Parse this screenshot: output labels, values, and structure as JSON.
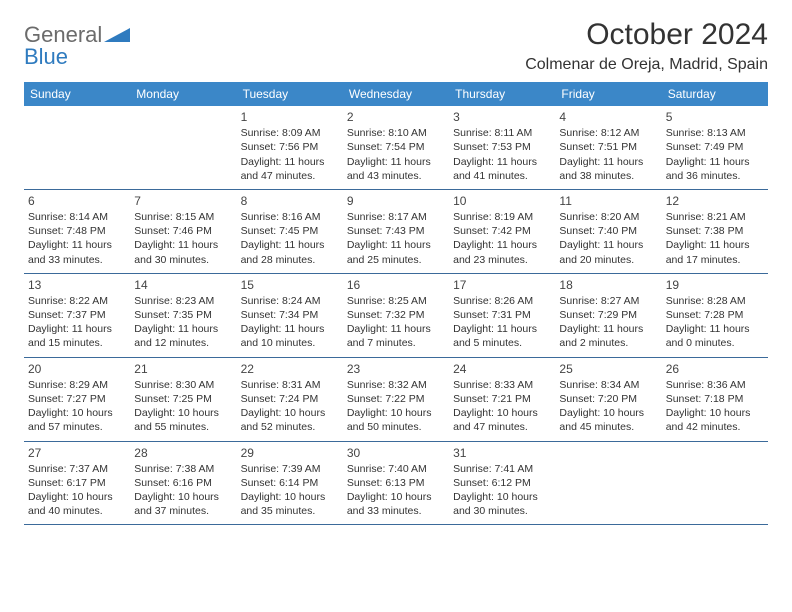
{
  "logo": {
    "gray_text": "General",
    "blue_text": "Blue"
  },
  "title": "October 2024",
  "location": "Colmenar de Oreja, Madrid, Spain",
  "weekdays": [
    "Sunday",
    "Monday",
    "Tuesday",
    "Wednesday",
    "Thursday",
    "Friday",
    "Saturday"
  ],
  "colors": {
    "header_bg": "#3b87c8",
    "header_text": "#ffffff",
    "row_border": "#3b6a9a",
    "body_text": "#333333",
    "logo_blue": "#2f7bbf",
    "logo_gray": "#6b6b6b",
    "background": "#ffffff"
  },
  "typography": {
    "title_fontsize": 30,
    "location_fontsize": 16,
    "weekday_fontsize": 12,
    "daynum_fontsize": 12,
    "body_fontsize": 10.5,
    "logo_fontsize": 22
  },
  "weeks": [
    [
      {
        "num": "",
        "sunrise": "",
        "sunset": "",
        "daylight1": "",
        "daylight2": ""
      },
      {
        "num": "",
        "sunrise": "",
        "sunset": "",
        "daylight1": "",
        "daylight2": ""
      },
      {
        "num": "1",
        "sunrise": "Sunrise: 8:09 AM",
        "sunset": "Sunset: 7:56 PM",
        "daylight1": "Daylight: 11 hours",
        "daylight2": "and 47 minutes."
      },
      {
        "num": "2",
        "sunrise": "Sunrise: 8:10 AM",
        "sunset": "Sunset: 7:54 PM",
        "daylight1": "Daylight: 11 hours",
        "daylight2": "and 43 minutes."
      },
      {
        "num": "3",
        "sunrise": "Sunrise: 8:11 AM",
        "sunset": "Sunset: 7:53 PM",
        "daylight1": "Daylight: 11 hours",
        "daylight2": "and 41 minutes."
      },
      {
        "num": "4",
        "sunrise": "Sunrise: 8:12 AM",
        "sunset": "Sunset: 7:51 PM",
        "daylight1": "Daylight: 11 hours",
        "daylight2": "and 38 minutes."
      },
      {
        "num": "5",
        "sunrise": "Sunrise: 8:13 AM",
        "sunset": "Sunset: 7:49 PM",
        "daylight1": "Daylight: 11 hours",
        "daylight2": "and 36 minutes."
      }
    ],
    [
      {
        "num": "6",
        "sunrise": "Sunrise: 8:14 AM",
        "sunset": "Sunset: 7:48 PM",
        "daylight1": "Daylight: 11 hours",
        "daylight2": "and 33 minutes."
      },
      {
        "num": "7",
        "sunrise": "Sunrise: 8:15 AM",
        "sunset": "Sunset: 7:46 PM",
        "daylight1": "Daylight: 11 hours",
        "daylight2": "and 30 minutes."
      },
      {
        "num": "8",
        "sunrise": "Sunrise: 8:16 AM",
        "sunset": "Sunset: 7:45 PM",
        "daylight1": "Daylight: 11 hours",
        "daylight2": "and 28 minutes."
      },
      {
        "num": "9",
        "sunrise": "Sunrise: 8:17 AM",
        "sunset": "Sunset: 7:43 PM",
        "daylight1": "Daylight: 11 hours",
        "daylight2": "and 25 minutes."
      },
      {
        "num": "10",
        "sunrise": "Sunrise: 8:19 AM",
        "sunset": "Sunset: 7:42 PM",
        "daylight1": "Daylight: 11 hours",
        "daylight2": "and 23 minutes."
      },
      {
        "num": "11",
        "sunrise": "Sunrise: 8:20 AM",
        "sunset": "Sunset: 7:40 PM",
        "daylight1": "Daylight: 11 hours",
        "daylight2": "and 20 minutes."
      },
      {
        "num": "12",
        "sunrise": "Sunrise: 8:21 AM",
        "sunset": "Sunset: 7:38 PM",
        "daylight1": "Daylight: 11 hours",
        "daylight2": "and 17 minutes."
      }
    ],
    [
      {
        "num": "13",
        "sunrise": "Sunrise: 8:22 AM",
        "sunset": "Sunset: 7:37 PM",
        "daylight1": "Daylight: 11 hours",
        "daylight2": "and 15 minutes."
      },
      {
        "num": "14",
        "sunrise": "Sunrise: 8:23 AM",
        "sunset": "Sunset: 7:35 PM",
        "daylight1": "Daylight: 11 hours",
        "daylight2": "and 12 minutes."
      },
      {
        "num": "15",
        "sunrise": "Sunrise: 8:24 AM",
        "sunset": "Sunset: 7:34 PM",
        "daylight1": "Daylight: 11 hours",
        "daylight2": "and 10 minutes."
      },
      {
        "num": "16",
        "sunrise": "Sunrise: 8:25 AM",
        "sunset": "Sunset: 7:32 PM",
        "daylight1": "Daylight: 11 hours",
        "daylight2": "and 7 minutes."
      },
      {
        "num": "17",
        "sunrise": "Sunrise: 8:26 AM",
        "sunset": "Sunset: 7:31 PM",
        "daylight1": "Daylight: 11 hours",
        "daylight2": "and 5 minutes."
      },
      {
        "num": "18",
        "sunrise": "Sunrise: 8:27 AM",
        "sunset": "Sunset: 7:29 PM",
        "daylight1": "Daylight: 11 hours",
        "daylight2": "and 2 minutes."
      },
      {
        "num": "19",
        "sunrise": "Sunrise: 8:28 AM",
        "sunset": "Sunset: 7:28 PM",
        "daylight1": "Daylight: 11 hours",
        "daylight2": "and 0 minutes."
      }
    ],
    [
      {
        "num": "20",
        "sunrise": "Sunrise: 8:29 AM",
        "sunset": "Sunset: 7:27 PM",
        "daylight1": "Daylight: 10 hours",
        "daylight2": "and 57 minutes."
      },
      {
        "num": "21",
        "sunrise": "Sunrise: 8:30 AM",
        "sunset": "Sunset: 7:25 PM",
        "daylight1": "Daylight: 10 hours",
        "daylight2": "and 55 minutes."
      },
      {
        "num": "22",
        "sunrise": "Sunrise: 8:31 AM",
        "sunset": "Sunset: 7:24 PM",
        "daylight1": "Daylight: 10 hours",
        "daylight2": "and 52 minutes."
      },
      {
        "num": "23",
        "sunrise": "Sunrise: 8:32 AM",
        "sunset": "Sunset: 7:22 PM",
        "daylight1": "Daylight: 10 hours",
        "daylight2": "and 50 minutes."
      },
      {
        "num": "24",
        "sunrise": "Sunrise: 8:33 AM",
        "sunset": "Sunset: 7:21 PM",
        "daylight1": "Daylight: 10 hours",
        "daylight2": "and 47 minutes."
      },
      {
        "num": "25",
        "sunrise": "Sunrise: 8:34 AM",
        "sunset": "Sunset: 7:20 PM",
        "daylight1": "Daylight: 10 hours",
        "daylight2": "and 45 minutes."
      },
      {
        "num": "26",
        "sunrise": "Sunrise: 8:36 AM",
        "sunset": "Sunset: 7:18 PM",
        "daylight1": "Daylight: 10 hours",
        "daylight2": "and 42 minutes."
      }
    ],
    [
      {
        "num": "27",
        "sunrise": "Sunrise: 7:37 AM",
        "sunset": "Sunset: 6:17 PM",
        "daylight1": "Daylight: 10 hours",
        "daylight2": "and 40 minutes."
      },
      {
        "num": "28",
        "sunrise": "Sunrise: 7:38 AM",
        "sunset": "Sunset: 6:16 PM",
        "daylight1": "Daylight: 10 hours",
        "daylight2": "and 37 minutes."
      },
      {
        "num": "29",
        "sunrise": "Sunrise: 7:39 AM",
        "sunset": "Sunset: 6:14 PM",
        "daylight1": "Daylight: 10 hours",
        "daylight2": "and 35 minutes."
      },
      {
        "num": "30",
        "sunrise": "Sunrise: 7:40 AM",
        "sunset": "Sunset: 6:13 PM",
        "daylight1": "Daylight: 10 hours",
        "daylight2": "and 33 minutes."
      },
      {
        "num": "31",
        "sunrise": "Sunrise: 7:41 AM",
        "sunset": "Sunset: 6:12 PM",
        "daylight1": "Daylight: 10 hours",
        "daylight2": "and 30 minutes."
      },
      {
        "num": "",
        "sunrise": "",
        "sunset": "",
        "daylight1": "",
        "daylight2": ""
      },
      {
        "num": "",
        "sunrise": "",
        "sunset": "",
        "daylight1": "",
        "daylight2": ""
      }
    ]
  ]
}
